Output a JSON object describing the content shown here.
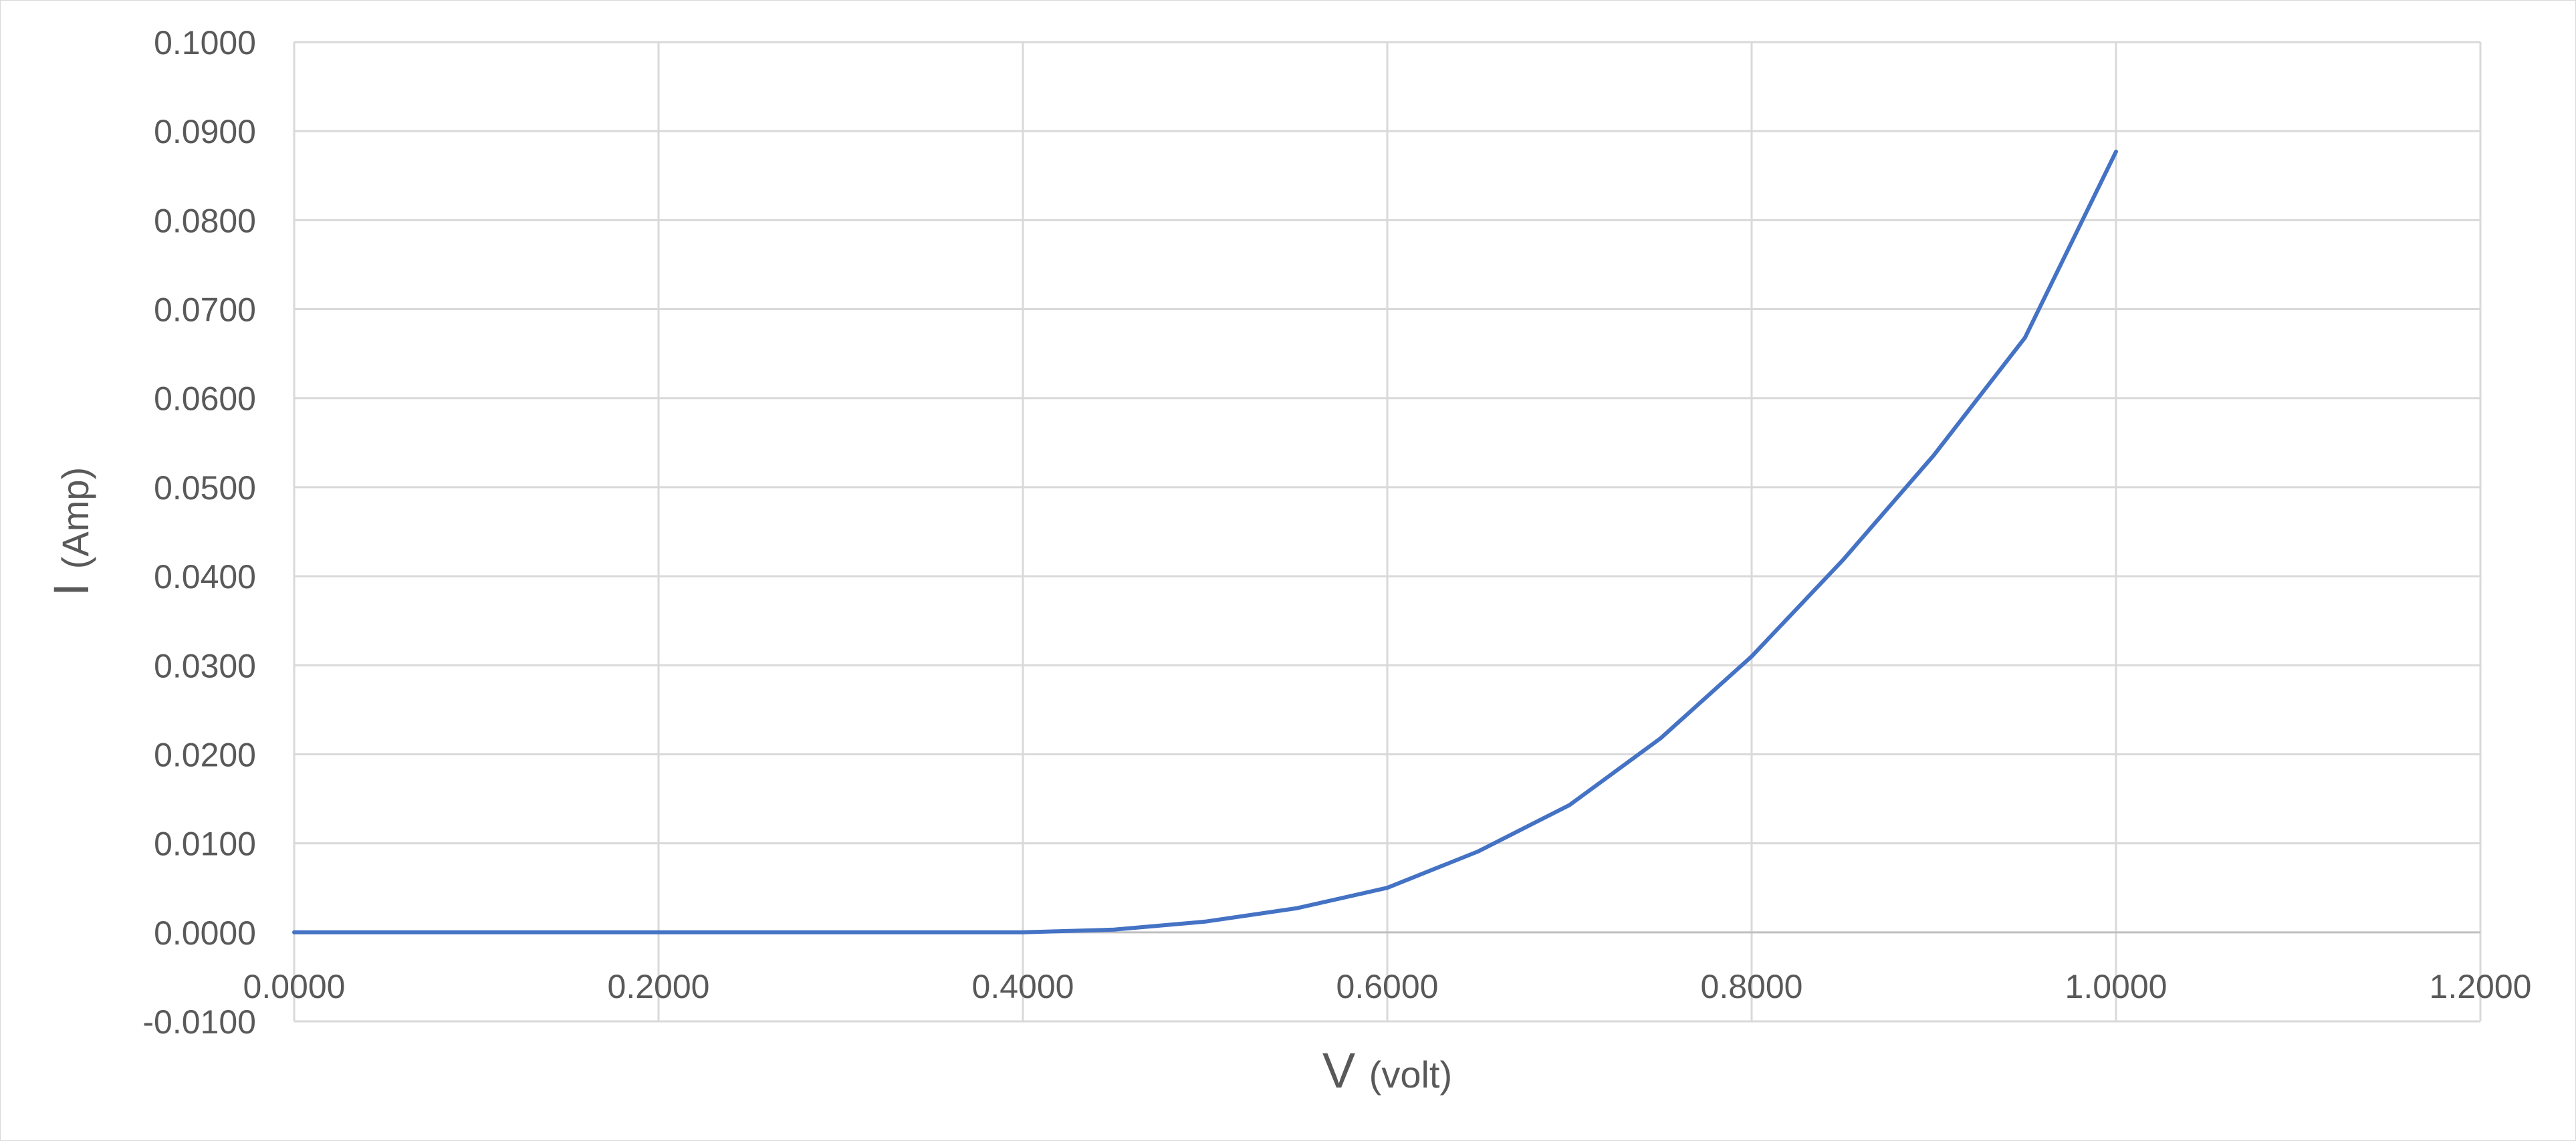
{
  "chart_data": {
    "type": "line",
    "title": "",
    "xlabel": "V",
    "xlabel_unit": "(volt)",
    "ylabel": "I",
    "ylabel_unit": "(Amp)",
    "xlim": [
      0,
      1.2
    ],
    "ylim": [
      -0.01,
      0.1
    ],
    "xticks": [
      "0.0000",
      "0.2000",
      "0.4000",
      "0.6000",
      "0.8000",
      "1.0000",
      "1.2000"
    ],
    "yticks": [
      "-0.0100",
      "0.0000",
      "0.0100",
      "0.0200",
      "0.0300",
      "0.0400",
      "0.0500",
      "0.0600",
      "0.0700",
      "0.0800",
      "0.0900",
      "0.1000"
    ],
    "grid": true,
    "legend": "none",
    "series": [
      {
        "color": "#4472c4",
        "x": [
          0.0,
          0.05,
          0.1,
          0.15,
          0.2,
          0.25,
          0.3,
          0.35,
          0.4,
          0.45,
          0.5,
          0.55,
          0.6,
          0.65,
          0.7,
          0.75,
          0.8,
          0.85,
          0.9,
          0.95,
          1.0
        ],
        "y": [
          0.0,
          0.0,
          0.0,
          0.0,
          0.0,
          0.0,
          0.0,
          0.0,
          0.0,
          0.0003,
          0.0012,
          0.0027,
          0.005,
          0.0091,
          0.0143,
          0.0218,
          0.031,
          0.0418,
          0.0536,
          0.0668,
          0.0877
        ]
      }
    ]
  }
}
